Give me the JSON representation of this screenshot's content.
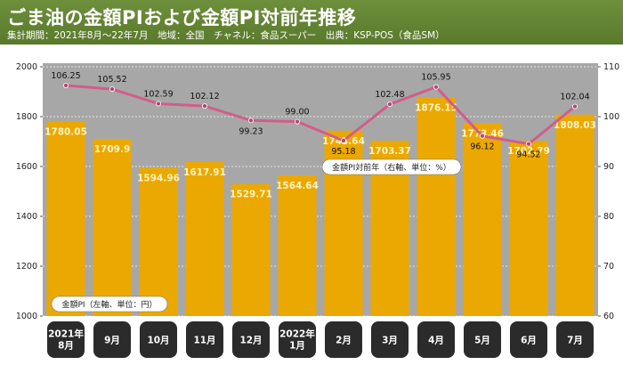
{
  "header": {
    "title": "ごま油の金額PIおよび金額PI対前年推移",
    "subtitle": "集計期間：2021年8月～22年7月　地域：全国　チャネル：食品スーパー　出典：KSP-POS（食品SM）"
  },
  "colors": {
    "title_bg": "#5f8131",
    "plot_bg": "#a7a7a7",
    "bar": "#eba800",
    "bar_label": "#fff3c0",
    "line": "#d25c8c",
    "line_marker": "#b04876",
    "category_bg": "#2b2b2b"
  },
  "chart_data": {
    "type": "bar+line",
    "categories": [
      [
        "2021年",
        "8月"
      ],
      [
        "9月"
      ],
      [
        "10月"
      ],
      [
        "11月"
      ],
      [
        "12月"
      ],
      [
        "2022年",
        "1月"
      ],
      [
        "2月"
      ],
      [
        "3月"
      ],
      [
        "4月"
      ],
      [
        "5月"
      ],
      [
        "6月"
      ],
      [
        "7月"
      ]
    ],
    "series": [
      {
        "name": "金額PI（左軸、単位：円）",
        "type": "bar",
        "axis": "left",
        "values": [
          1780.05,
          1709.9,
          1594.96,
          1617.91,
          1529.71,
          1564.64,
          1743.64,
          1703.37,
          1876.15,
          1773.46,
          1702.79,
          1808.03
        ],
        "labels": [
          "1780.05",
          "1709.9",
          "1594.96",
          "1617.91",
          "1529.71",
          "1564.64",
          "1743.64",
          "1703.37",
          "1876.15",
          "1773.46",
          "1702.79",
          "1808.03"
        ]
      },
      {
        "name": "金額PI対前年（右軸、単位：%）",
        "type": "line",
        "axis": "right",
        "values": [
          106.25,
          105.52,
          102.59,
          102.12,
          99.23,
          99.0,
          95.18,
          102.48,
          105.95,
          96.12,
          94.52,
          102.04
        ],
        "labels": [
          "106.25",
          "105.52",
          "102.59",
          "102.12",
          "99.23",
          "99.00",
          "95.18",
          "102.48",
          "105.95",
          "96.12",
          "94.52",
          "102.04"
        ]
      }
    ],
    "y_left": {
      "min": 1000,
      "max": 2000,
      "ticks": [
        "1000",
        "1200",
        "1400",
        "1600",
        "1800",
        "2000"
      ]
    },
    "y_right": {
      "min": 60,
      "max": 110,
      "ticks": [
        "60",
        "70",
        "80",
        "90",
        "100",
        "110"
      ]
    },
    "grid": true,
    "legend": [
      "bottom-left",
      "right-middle"
    ]
  }
}
